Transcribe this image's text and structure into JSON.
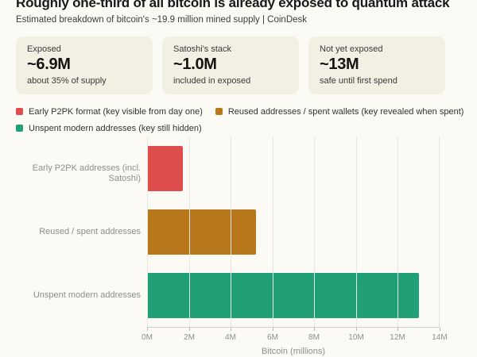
{
  "page": {
    "title": "Roughly one-third of all bitcoin is already exposed to quantum attack",
    "subtitle": "Estimated breakdown of bitcoin's ~19.9 million mined supply | CoinDesk"
  },
  "cards": [
    {
      "label": "Exposed",
      "value": "~6.9M",
      "sublabel": "about 35% of supply"
    },
    {
      "label": "Satoshi's stack",
      "value": "~1.0M",
      "sublabel": "included in exposed"
    },
    {
      "label": "Not yet exposed",
      "value": "~13M",
      "sublabel": "safe until first spend"
    }
  ],
  "legend": [
    {
      "label": "Early P2PK format (key visible from day one)",
      "color": "#de4c4c"
    },
    {
      "label": "Reused addresses / spent wallets (key revealed when spent)",
      "color": "#b8771b"
    },
    {
      "label": "Unspent modern addresses (key still hidden)",
      "color": "#21a077"
    }
  ],
  "chart_data": {
    "type": "bar",
    "orientation": "horizontal",
    "title": "Roughly one-third of all bitcoin is already exposed to quantum attack",
    "subtitle": "Estimated breakdown of bitcoin's ~19.9 million mined supply | CoinDesk",
    "categories": [
      "Early P2PK addresses (incl. Satoshi)",
      "Reused / spent addresses",
      "Unspent modern addresses"
    ],
    "values": [
      1.7,
      5.2,
      13.0
    ],
    "colors": [
      "#de4c4c",
      "#b8771b",
      "#21a077"
    ],
    "xlabel": "Bitcoin (millions)",
    "ylabel": "",
    "xlim": [
      0,
      14
    ],
    "xticks": [
      "0M",
      "2M",
      "4M",
      "6M",
      "8M",
      "10M",
      "12M",
      "14M"
    ],
    "grid": true,
    "legend_position": "top"
  },
  "colors": {
    "background": "#fbfaf5",
    "card_background": "#f2f0e3",
    "gridline": "#e7e6e0",
    "axis": "#cfcec8",
    "muted_text": "#8f8e89"
  }
}
